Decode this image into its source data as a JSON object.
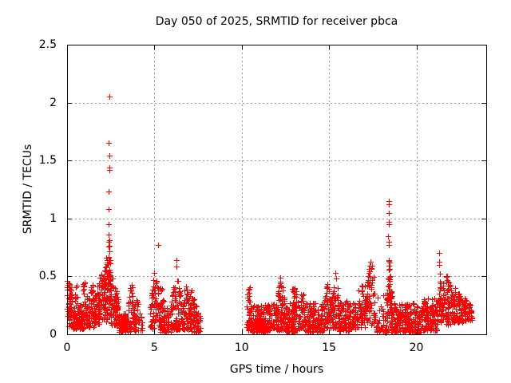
{
  "chart_data": {
    "type": "scatter",
    "title": "Day 050 of 2025, SRMTID for receiver pbca",
    "day_of_year": "050",
    "year": "2025",
    "receiver": "pbca",
    "xlabel": "GPS time / hours",
    "ylabel": "SRMTID / TECUs",
    "xlim": [
      0,
      24
    ],
    "ylim": [
      0,
      2.5
    ],
    "xticks": [
      0,
      5,
      10,
      15,
      20
    ],
    "yticks": [
      0,
      0.5,
      1,
      1.5,
      2,
      2.5
    ],
    "grid": "dotted gray at major ticks, mirrored inward black tick marks on all four borders",
    "legend_position": "none",
    "marker": "plus",
    "marker_color": "#ff0000",
    "grid_color": "#999999",
    "border_color": "#000000",
    "background_color": "#ffffff",
    "data_gaps_hours": [
      [
        7.62,
        10.28
      ],
      [
        23.18,
        24
      ]
    ],
    "notable_points": [
      [
        2.4,
        2.05
      ],
      [
        2.39,
        1.65
      ],
      [
        2.4,
        1.54
      ],
      [
        2.4,
        1.44
      ],
      [
        2.41,
        1.42
      ],
      [
        2.38,
        1.23
      ],
      [
        2.38,
        1.08
      ],
      [
        2.37,
        0.95
      ],
      [
        5.22,
        0.77
      ],
      [
        18.42,
        1.15
      ],
      [
        18.43,
        1.12
      ],
      [
        18.41,
        1.05
      ],
      [
        18.44,
        0.97
      ],
      [
        18.42,
        0.95
      ],
      [
        18.4,
        0.85
      ],
      [
        18.44,
        0.8
      ],
      [
        18.43,
        0.77
      ],
      [
        18.1,
        0.34
      ],
      [
        18.05,
        0.22
      ],
      [
        21.3,
        0.7
      ],
      [
        21.31,
        0.63
      ],
      [
        21.28,
        0.6
      ],
      [
        21.33,
        0.52
      ]
    ],
    "clusters_format": "[x_start_h, x_end_h, n_points, y_base_TECU, skew_k, top_profile(flat|rise|peak), top_a(start_or_edge_or_value), top_b(end_or_max), peak_center_h]",
    "clusters": [
      [
        0.0,
        0.3,
        55,
        0.07,
        0.75,
        "rise",
        0.5,
        0.35,
        0
      ],
      [
        0.3,
        0.7,
        60,
        0.05,
        1.2,
        "peak",
        0.2,
        0.46,
        0.55
      ],
      [
        0.7,
        1.05,
        50,
        0.05,
        1.4,
        "flat",
        0.28,
        0,
        0
      ],
      [
        0.92,
        1.02,
        12,
        0.25,
        1.0,
        "flat",
        0.46,
        0,
        0
      ],
      [
        1.05,
        1.55,
        70,
        0.06,
        1.3,
        "peak",
        0.3,
        0.46,
        1.48
      ],
      [
        1.55,
        2.05,
        80,
        0.08,
        1.1,
        "rise",
        0.32,
        0.6,
        0
      ],
      [
        2.05,
        2.32,
        60,
        0.1,
        1.0,
        "rise",
        0.5,
        0.72,
        0
      ],
      [
        2.28,
        2.52,
        55,
        0.15,
        1.0,
        "peak",
        0.45,
        0.9,
        2.39
      ],
      [
        2.5,
        2.95,
        70,
        0.08,
        1.2,
        "rise",
        0.55,
        0.3,
        0
      ],
      [
        2.95,
        3.45,
        85,
        0.02,
        1.5,
        "flat",
        0.18,
        0,
        0
      ],
      [
        3.45,
        3.95,
        70,
        0.02,
        1.3,
        "peak",
        0.18,
        0.5,
        3.7
      ],
      [
        3.95,
        4.3,
        25,
        0.03,
        1.2,
        "rise",
        0.33,
        0.14,
        0
      ],
      [
        4.75,
        5.08,
        40,
        0.03,
        1.0,
        "rise",
        0.25,
        0.62,
        0
      ],
      [
        5.05,
        5.45,
        50,
        0.05,
        1.1,
        "peak",
        0.38,
        0.76,
        5.2
      ],
      [
        5.35,
        5.95,
        60,
        0.02,
        1.5,
        "rise",
        0.35,
        0.17,
        0
      ],
      [
        5.95,
        6.55,
        80,
        0.04,
        1.25,
        "peak",
        0.25,
        0.71,
        6.25
      ],
      [
        6.55,
        7.1,
        70,
        0.04,
        1.3,
        "peak",
        0.22,
        0.54,
        6.9
      ],
      [
        7.05,
        7.62,
        70,
        0.02,
        1.4,
        "rise",
        0.42,
        0.14,
        0
      ],
      [
        10.28,
        10.6,
        30,
        0.03,
        1.2,
        "flat",
        0.26,
        0,
        0
      ],
      [
        10.32,
        10.52,
        10,
        0.28,
        0.9,
        "flat",
        0.41,
        0,
        0
      ],
      [
        10.5,
        11.6,
        150,
        0.02,
        1.5,
        "flat",
        0.26,
        0,
        0
      ],
      [
        11.58,
        11.88,
        30,
        0.05,
        1.2,
        "peak",
        0.22,
        0.39,
        11.72
      ],
      [
        11.88,
        12.55,
        90,
        0.03,
        1.35,
        "peak",
        0.28,
        0.49,
        12.2
      ],
      [
        12.55,
        13.35,
        100,
        0.02,
        1.5,
        "flat",
        0.28,
        0,
        0
      ],
      [
        12.9,
        13.15,
        25,
        0.15,
        1.1,
        "flat",
        0.41,
        0,
        0
      ],
      [
        13.35,
        13.62,
        30,
        0.05,
        1.2,
        "flat",
        0.35,
        0,
        0
      ],
      [
        13.6,
        14.7,
        130,
        0.02,
        1.5,
        "flat",
        0.27,
        0,
        0
      ],
      [
        14.7,
        15.1,
        50,
        0.04,
        1.2,
        "peak",
        0.3,
        0.51,
        14.9
      ],
      [
        15.1,
        15.58,
        60,
        0.05,
        1.15,
        "peak",
        0.33,
        0.56,
        15.35
      ],
      [
        15.55,
        16.3,
        90,
        0.03,
        1.4,
        "flat",
        0.29,
        0,
        0
      ],
      [
        16.3,
        17.12,
        90,
        0.05,
        1.25,
        "rise",
        0.27,
        0.5,
        0
      ],
      [
        17.1,
        17.65,
        70,
        0.08,
        1.1,
        "peak",
        0.38,
        0.68,
        17.4
      ],
      [
        17.65,
        18.25,
        30,
        0.02,
        1.4,
        "rise",
        0.38,
        0.18,
        0
      ],
      [
        18.2,
        18.27,
        8,
        0.01,
        1.0,
        "flat",
        0.06,
        0,
        0
      ],
      [
        18.3,
        18.6,
        70,
        0.05,
        1.0,
        "peak",
        0.33,
        0.72,
        18.45
      ],
      [
        18.55,
        19.0,
        55,
        0.02,
        1.4,
        "rise",
        0.33,
        0.17,
        0
      ],
      [
        19.0,
        20.4,
        170,
        0.02,
        1.45,
        "flat",
        0.27,
        0,
        0
      ],
      [
        20.4,
        21.25,
        110,
        0.03,
        1.35,
        "flat",
        0.32,
        0,
        0
      ],
      [
        21.25,
        21.5,
        14,
        0.12,
        1.0,
        "peak",
        0.3,
        0.55,
        21.35
      ],
      [
        21.3,
        22.15,
        100,
        0.08,
        1.15,
        "peak",
        0.32,
        0.55,
        21.7
      ],
      [
        22.15,
        22.7,
        70,
        0.1,
        1.2,
        "rise",
        0.42,
        0.3,
        0
      ],
      [
        22.7,
        23.18,
        50,
        0.12,
        1.2,
        "rise",
        0.32,
        0.24,
        0
      ]
    ]
  }
}
